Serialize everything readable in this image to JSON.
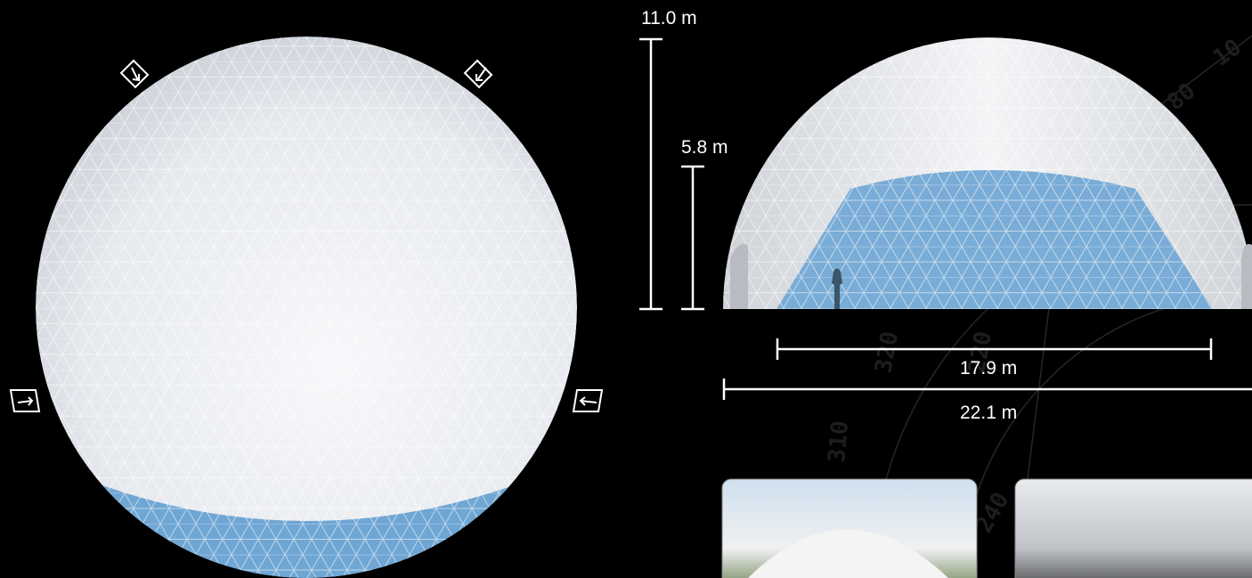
{
  "dimensions": {
    "height": "11.0 m",
    "door_height": "5.8 m",
    "inner_width": "17.9 m",
    "diameter": "22.1 m"
  },
  "compass": [
    "320",
    "310",
    "240",
    "220",
    "80",
    "10"
  ]
}
